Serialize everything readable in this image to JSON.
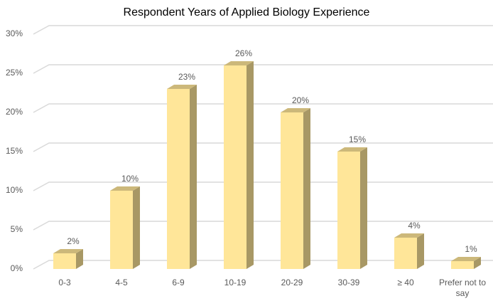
{
  "chart_data": {
    "type": "bar3d",
    "title": "Respondent Years of Applied Biology Experience",
    "categories": [
      "0-3",
      "4-5",
      "6-9",
      "10-19",
      "20-29",
      "30-39",
      "≥ 40",
      "Prefer not to say"
    ],
    "values": [
      2,
      10,
      23,
      26,
      20,
      15,
      4,
      1
    ],
    "value_labels": [
      "2%",
      "10%",
      "23%",
      "26%",
      "20%",
      "15%",
      "4%",
      "1%"
    ],
    "color": "#ffe699",
    "ylim": [
      0,
      30
    ],
    "yticks": [
      {
        "value": 0,
        "label": "0%"
      },
      {
        "value": 5,
        "label": "5%"
      },
      {
        "value": 10,
        "label": "10%"
      },
      {
        "value": 15,
        "label": "15%"
      },
      {
        "value": 20,
        "label": "20%"
      },
      {
        "value": 25,
        "label": "25%"
      },
      {
        "value": 30,
        "label": "30%"
      }
    ],
    "grid": true
  }
}
